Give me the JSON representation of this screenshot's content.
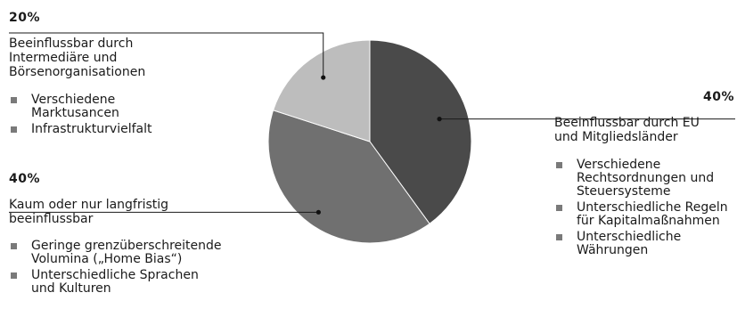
{
  "chart_data": {
    "type": "pie",
    "slices": [
      {
        "value": 40,
        "percent_label": "40%",
        "color": "#4a4a4a",
        "description": "Beeinflussbar durch EU und Mitgliedsländer",
        "desc_lines": [
          "Beeinflussbar durch EU",
          "und Mitgliedsländer"
        ],
        "bullets": [
          [
            "Verschiedene",
            "Rechtsordnungen und",
            "Steuersysteme"
          ],
          [
            "Unterschiedliche Regeln",
            "für Kapitalmaßnahmen"
          ],
          [
            "Unterschiedliche",
            "Währungen"
          ]
        ]
      },
      {
        "value": 40,
        "percent_label": "40%",
        "color": "#707070",
        "description": "Kaum oder nur langfristig beeinflussbar",
        "desc_lines": [
          "Kaum oder nur langfristig",
          "beeinflussbar"
        ],
        "bullets": [
          [
            "Geringe grenzüberschreitende",
            "Volumina („Home Bias“)"
          ],
          [
            "Unterschiedliche Sprachen",
            "und Kulturen"
          ]
        ]
      },
      {
        "value": 20,
        "percent_label": "20%",
        "color": "#bdbdbd",
        "description": "Beeinflussbar durch Intermediäre und Börsenorganisationen",
        "desc_lines": [
          "Beeinflussbar durch",
          "Intermediäre und",
          "Börsenorganisationen"
        ],
        "bullets": [
          [
            "Verschiedene",
            "Marktusancen"
          ],
          [
            "Infrastrukturvielfalt"
          ]
        ]
      }
    ]
  }
}
